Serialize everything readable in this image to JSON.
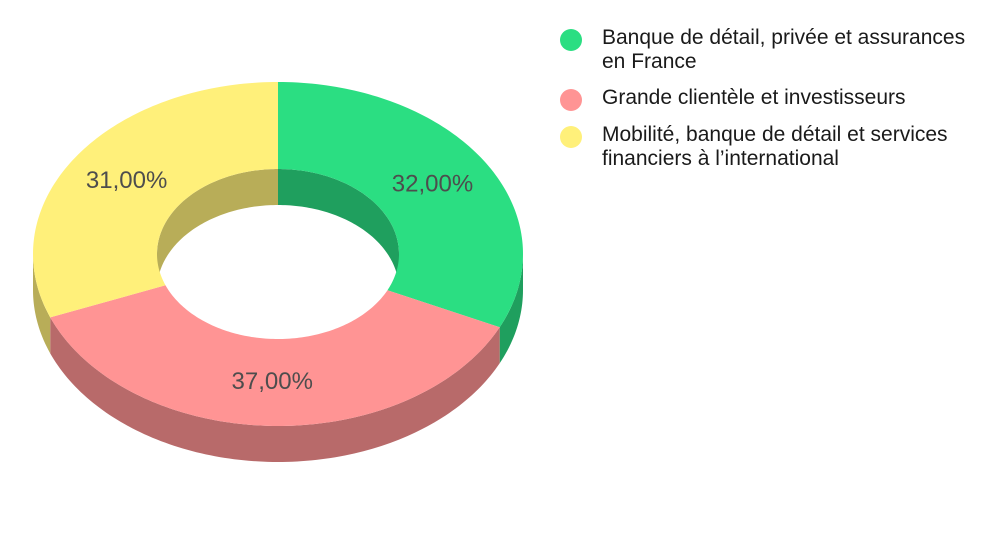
{
  "chart_data": {
    "type": "pie",
    "variant": "3d-donut",
    "categories": [
      "Banque de détail, privée et assurances en France",
      "Grande clientèle et investisseurs",
      "Mobilité, banque de détail et services financiers à l’international"
    ],
    "values": [
      32,
      37,
      31
    ],
    "labels": [
      "32,00%",
      "37,00%",
      "31,00%"
    ],
    "colors": [
      "#2bde82",
      "#ff9494",
      "#fff07a"
    ],
    "side_colors": [
      "#1f9f5e",
      "#b86a6a",
      "#b8ad58"
    ],
    "legend_position": "right"
  }
}
